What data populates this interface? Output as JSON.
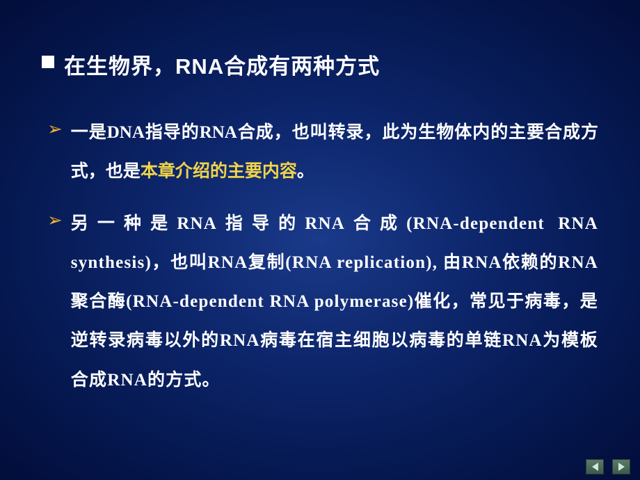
{
  "slide": {
    "background": {
      "gradient_center": "#1a3a8a",
      "gradient_mid": "#0c2468",
      "gradient_outer": "#051850",
      "gradient_edge": "#020d3a"
    },
    "title": {
      "bullet_type": "square",
      "bullet_color": "#ffffff",
      "text": "在生物界，RNA合成有两种方式",
      "font_color": "#ffffff",
      "font_size": 31,
      "font_weight": "bold"
    },
    "bullets": [
      {
        "marker": "➢",
        "marker_color": "#e8b030",
        "text_pre": "一是DNA指导的RNA合成，也叫转录，此为生物体内的主要合成方式，也是",
        "highlight": "本章介绍的主要内容",
        "highlight_color": "#f0d448",
        "text_post": "。",
        "font_color": "#ffffff",
        "font_size": 25,
        "line_height": 2.2
      },
      {
        "marker": "➢",
        "marker_color": "#e8b030",
        "text": "另一种是RNA指导的RNA合成(RNA-dependent RNA synthesis)，也叫RNA复制(RNA replication), 由RNA依赖的RNA聚合酶(RNA-dependent RNA polymerase)催化，常见于病毒，是逆转录病毒以外的RNA病毒在宿主细胞以病毒的单链RNA为模板合成RNA的方式。",
        "font_color": "#ffffff",
        "font_size": 25,
        "line_height": 2.2
      }
    ],
    "navigation": {
      "prev_label": "previous",
      "next_label": "next",
      "button_bg": "#3d5a4a",
      "arrow_color": "#d0e8d8"
    }
  }
}
